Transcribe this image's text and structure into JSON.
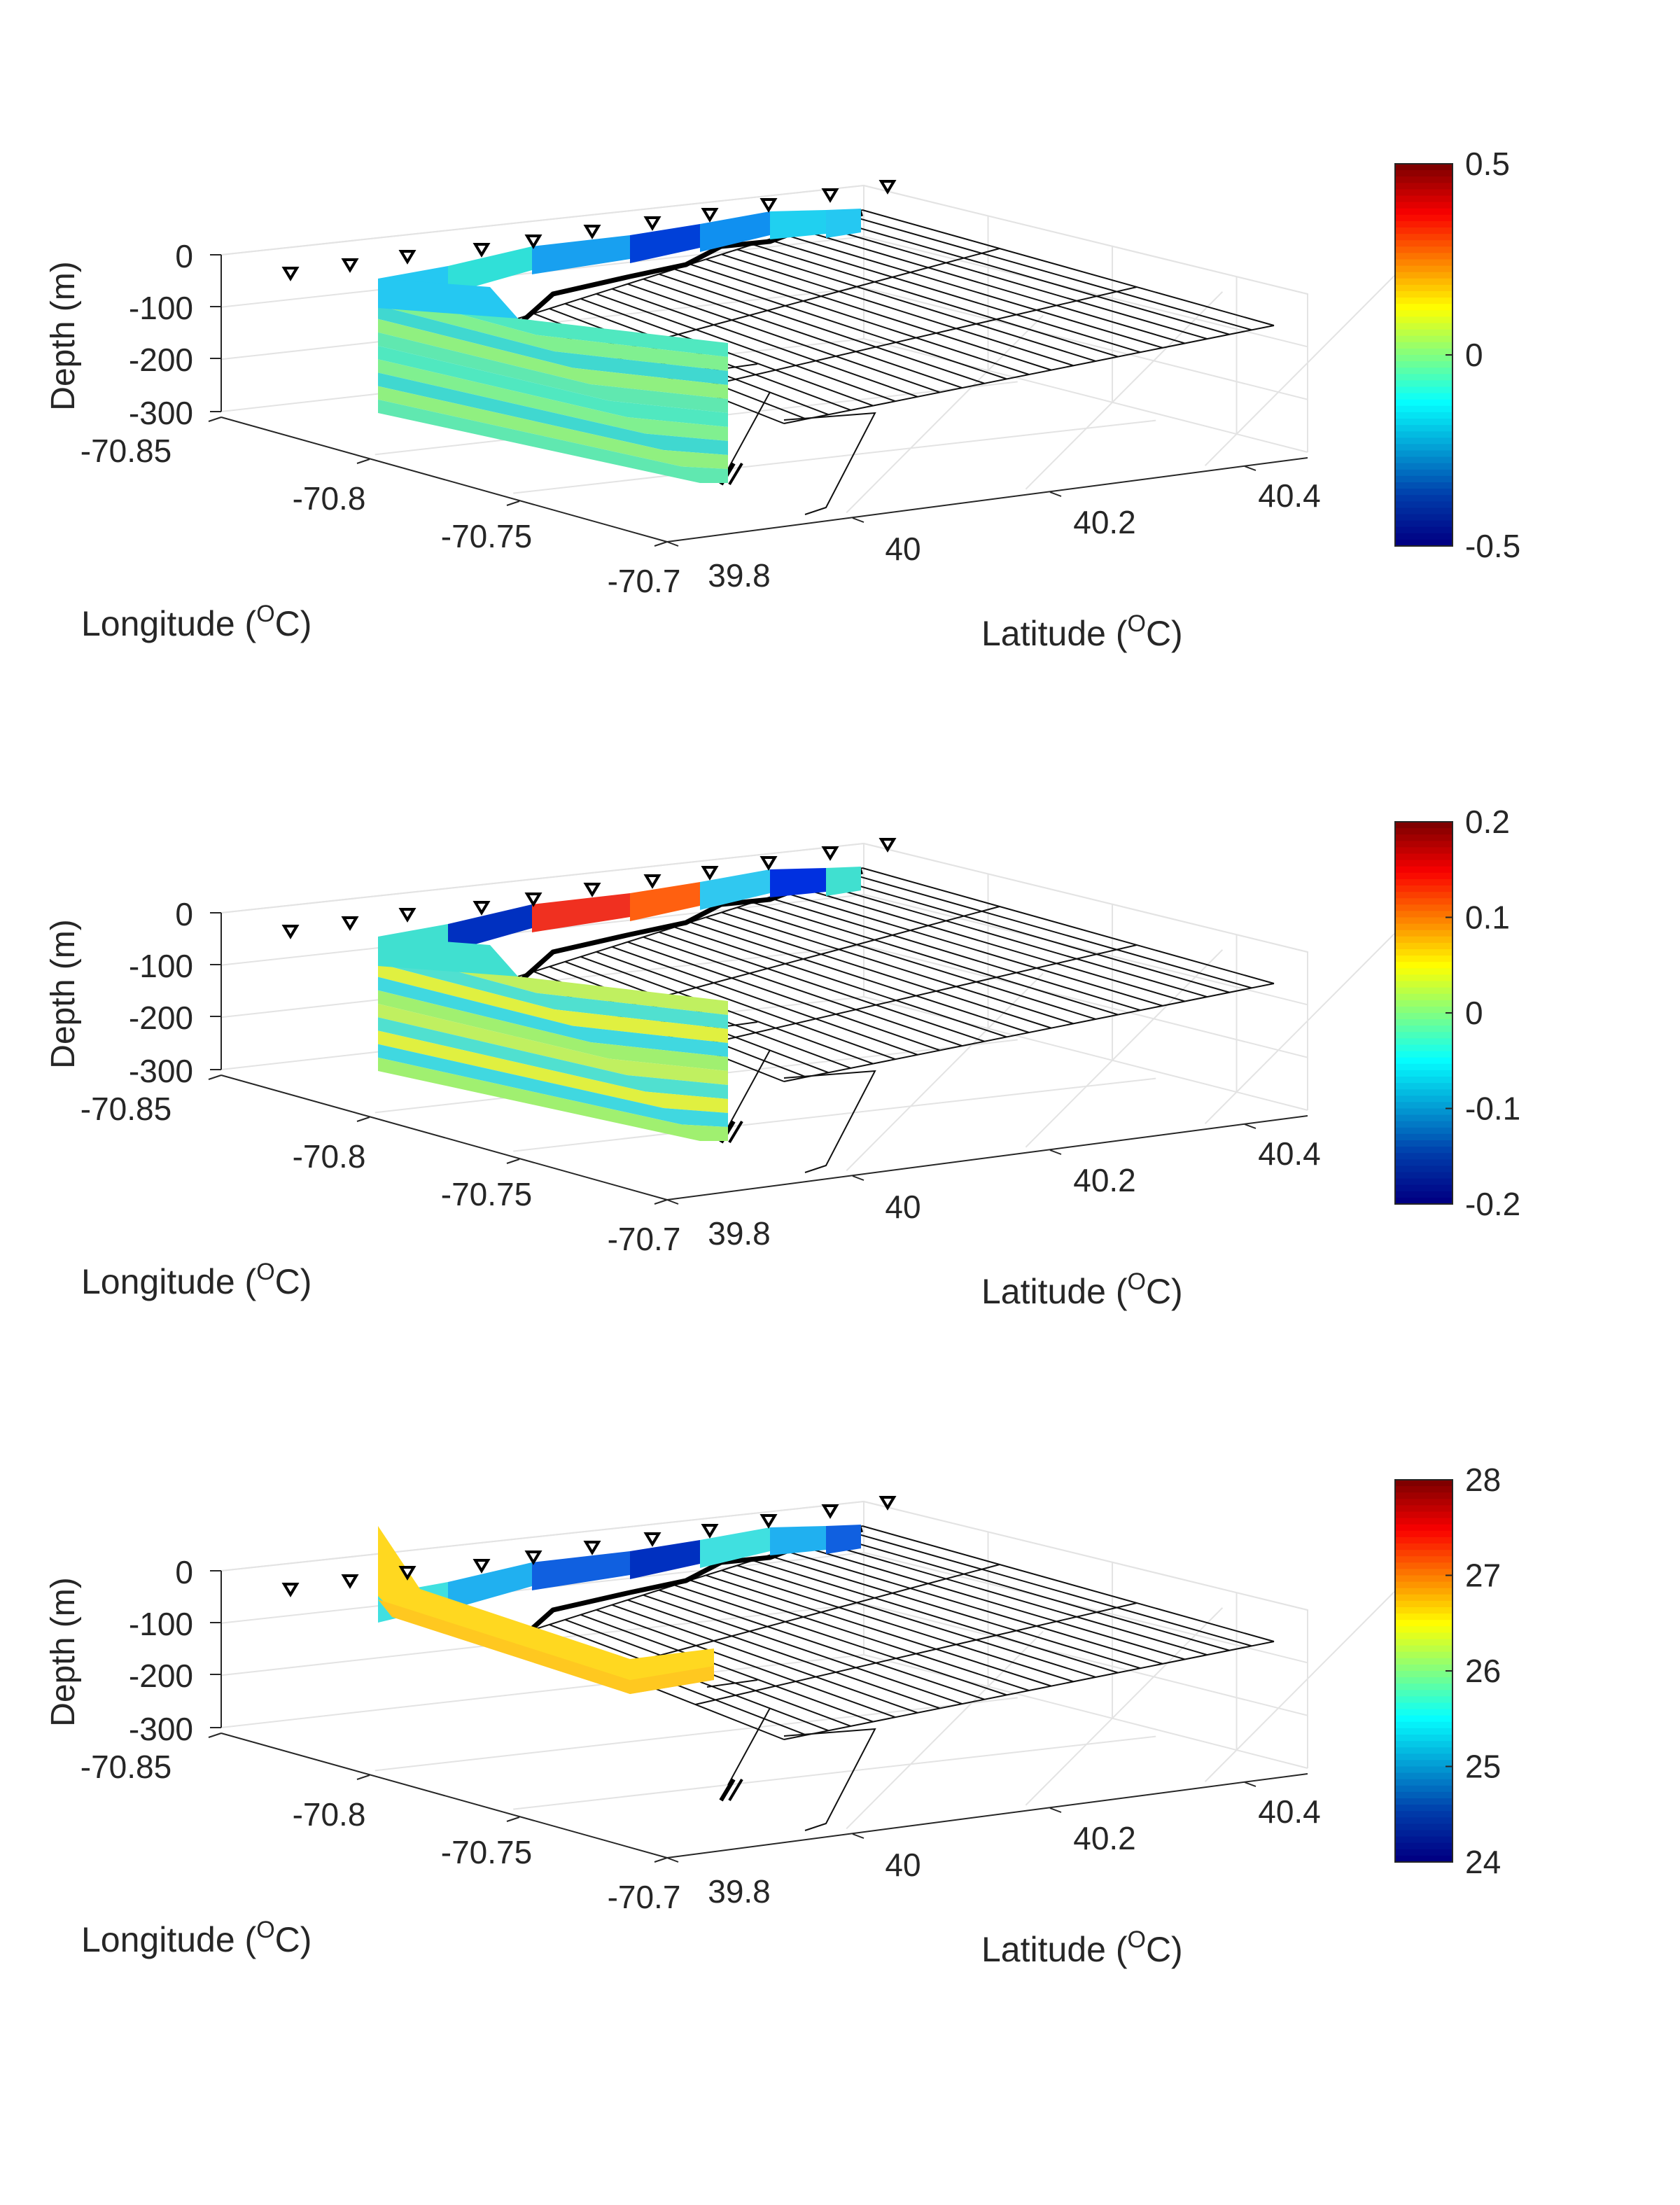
{
  "chart_data": [
    {
      "type": "3d-surface-section",
      "zlabel": "Depth (m)",
      "xlabel_prefix": "Longitude (",
      "xlabel_sup": "O",
      "xlabel_suffix": "C)",
      "ylabel_prefix": "Latitude (",
      "ylabel_sup": "O",
      "ylabel_suffix": "C)",
      "z_ticks": [
        "0",
        "-100",
        "-200",
        "-300"
      ],
      "x_ticks": [
        "-70.85",
        "-70.8",
        "-70.75",
        "-70.7"
      ],
      "y_ticks": [
        "39.8",
        "40",
        "40.2",
        "40.4"
      ],
      "zlim": [
        -300,
        0
      ],
      "colorbar": {
        "ticks": [
          "0.5",
          "0",
          "-0.5"
        ],
        "range": [
          -0.5,
          0.5
        ],
        "colormap": "jet"
      },
      "section_colors": [
        "#25c8f2",
        "#30e0d8",
        "#18a0f0",
        "#0040d8",
        "#1090f0",
        "#20d0f0"
      ],
      "body_colors": [
        "#50e8c0",
        "#80f090",
        "#40d8d0",
        "#90f080",
        "#60e8b0"
      ]
    },
    {
      "type": "3d-surface-section",
      "zlabel": "Depth (m)",
      "xlabel_prefix": "Longitude (",
      "xlabel_sup": "O",
      "xlabel_suffix": "C)",
      "ylabel_prefix": "Latitude (",
      "ylabel_sup": "O",
      "ylabel_suffix": "C)",
      "z_ticks": [
        "0",
        "-100",
        "-200",
        "-300"
      ],
      "x_ticks": [
        "-70.85",
        "-70.8",
        "-70.75",
        "-70.7"
      ],
      "y_ticks": [
        "39.8",
        "40",
        "40.2",
        "40.4"
      ],
      "zlim": [
        -300,
        0
      ],
      "colorbar": {
        "ticks": [
          "0.2",
          "0.1",
          "0",
          "-0.1",
          "-0.2"
        ],
        "range": [
          -0.2,
          0.2
        ],
        "colormap": "jet"
      },
      "section_colors": [
        "#40e0d0",
        "#0030c0",
        "#f03020",
        "#ff6010",
        "#30c8f0",
        "#0030e0"
      ],
      "body_colors": [
        "#c0f060",
        "#50e0d0",
        "#e0f040",
        "#40d8e0",
        "#a0f070"
      ]
    },
    {
      "type": "3d-surface-section",
      "zlabel": "Depth (m)",
      "xlabel_prefix": "Longitude (",
      "xlabel_sup": "O",
      "xlabel_suffix": "C)",
      "ylabel_prefix": "Latitude (",
      "ylabel_sup": "O",
      "ylabel_suffix": "C)",
      "z_ticks": [
        "0",
        "-100",
        "-200",
        "-300"
      ],
      "x_ticks": [
        "-70.85",
        "-70.8",
        "-70.75",
        "-70.7"
      ],
      "y_ticks": [
        "39.8",
        "40",
        "40.2",
        "40.4"
      ],
      "zlim": [
        -300,
        0
      ],
      "colorbar": {
        "ticks": [
          "28",
          "27",
          "26",
          "25",
          "24"
        ],
        "range": [
          24,
          28
        ],
        "colormap": "jet"
      },
      "section_colors": [
        "#40e0e0",
        "#20b0f0",
        "#1060e0",
        "#0030c0"
      ],
      "body_colors": [
        "#ffd820",
        "#f8e030",
        "#ffc820"
      ]
    }
  ]
}
